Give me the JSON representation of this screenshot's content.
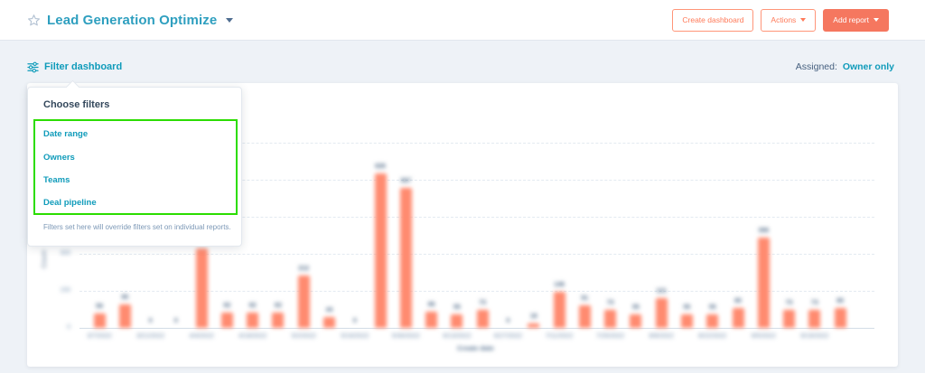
{
  "header": {
    "title": "Lead Generation Optimize",
    "buttons": {
      "create_dashboard": "Create dashboard",
      "actions": "Actions",
      "add_report": "Add report"
    }
  },
  "toolbar": {
    "filter_dashboard": "Filter dashboard",
    "assigned_label": "Assigned:",
    "assigned_value": "Owner only"
  },
  "filter_popover": {
    "title": "Choose filters",
    "options": [
      "Date range",
      "Owners",
      "Teams",
      "Deal pipeline"
    ],
    "footnote": "Filters set here will override filters set on individual reports."
  },
  "colors": {
    "title_teal": "#2e9fbf",
    "link_teal": "#0f9bba",
    "coral": "#ff7a59",
    "bar_coral": "#ff8b70",
    "navy": "#33475b",
    "muted_gray": "#7c98b6",
    "highlight_green": "#2bdd00",
    "page_background": "#eef2f7"
  },
  "chart_data": {
    "type": "bar",
    "appearance": "blurred",
    "note": "chart pixels are blurred in the source screenshot; values and date labels are visual estimates",
    "x": [
      "3/7/2022",
      "3/14/2022",
      "3/21/2022",
      "3/28/2022",
      "4/4/2022",
      "4/11/2022",
      "4/18/2022",
      "4/25/2022",
      "5/2/2022",
      "5/9/2022",
      "5/16/2022",
      "5/23/2022",
      "5/30/2022",
      "6/6/2022",
      "6/13/2022",
      "6/20/2022",
      "6/27/2022",
      "7/4/2022",
      "7/11/2022",
      "7/18/2022",
      "7/25/2022",
      "8/1/2022",
      "8/8/2022",
      "8/15/2022",
      "8/22/2022",
      "8/29/2022",
      "9/5/2022",
      "9/12/2022",
      "9/19/2022",
      "9/26/2022"
    ],
    "values": [
      59,
      95,
      0,
      0,
      322,
      62,
      62,
      62,
      212,
      44,
      0,
      626,
      567,
      66,
      55,
      73,
      0,
      18,
      146,
      91,
      73,
      55,
      121,
      55,
      55,
      80,
      366,
      73,
      73,
      80
    ],
    "x_label_every": 2,
    "xlabel": "Create date",
    "ylabel": "Count",
    "ylim": [
      0,
      750
    ],
    "yticks": [
      0,
      150,
      300,
      450,
      600,
      750
    ],
    "grid": true,
    "legend": false
  }
}
